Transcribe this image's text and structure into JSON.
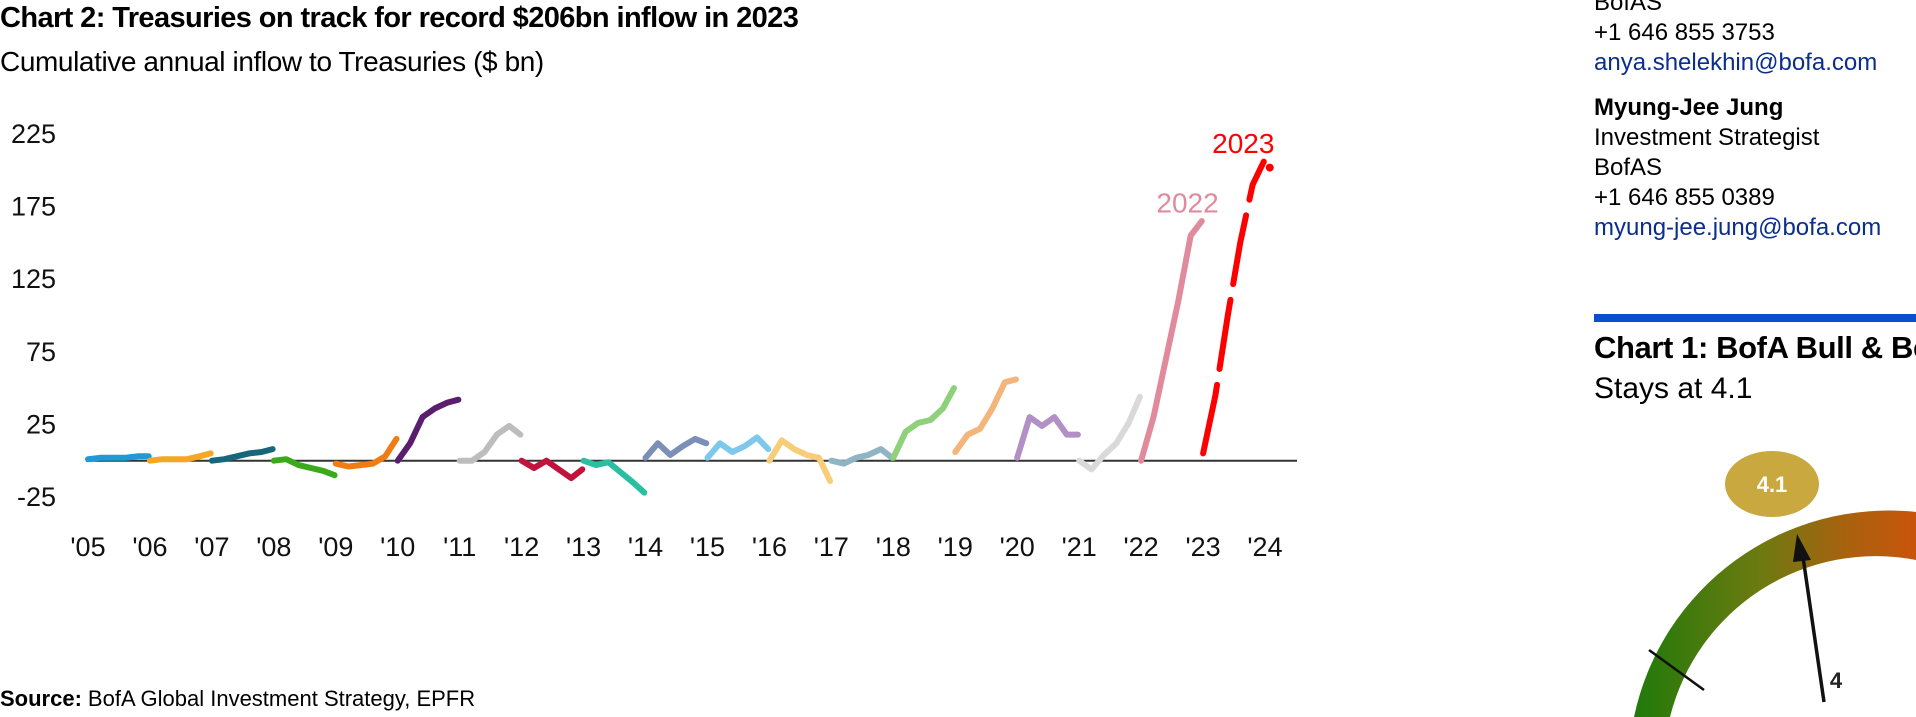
{
  "chart_data": {
    "type": "line",
    "title": "Chart 2: Treasuries on track for record $206bn inflow in 2023",
    "subtitle": "Cumulative annual inflow to Treasuries ($ bn)",
    "xlabel": "",
    "ylabel": "",
    "x_ticks": [
      "'05",
      "'06",
      "'07",
      "'08",
      "'09",
      "'10",
      "'11",
      "'12",
      "'13",
      "'14",
      "'15",
      "'16",
      "'17",
      "'18",
      "'19",
      "'20",
      "'21",
      "'22",
      "'23",
      "'24"
    ],
    "y_ticks": [
      225,
      175,
      125,
      75,
      25,
      -25
    ],
    "ylim": [
      -25,
      225
    ],
    "xlim": [
      2005,
      2024
    ],
    "grid": false,
    "zero_line": true,
    "legend": "none",
    "source_label": "Source:",
    "source_text": "BofA Global Investment Strategy, EPFR",
    "annotations": [
      {
        "text": "2023",
        "x": 2023.65,
        "y": 212,
        "color": "#ff0000"
      },
      {
        "text": "2022",
        "x": 2022.75,
        "y": 171,
        "color": "#e08a9c"
      }
    ],
    "series": [
      {
        "year": 2005,
        "color": "#1f9ad6",
        "points": [
          [
            2005.0,
            1
          ],
          [
            2005.2,
            2
          ],
          [
            2005.4,
            2
          ],
          [
            2005.6,
            2
          ],
          [
            2005.8,
            3
          ],
          [
            2005.98,
            3
          ]
        ]
      },
      {
        "year": 2006,
        "color": "#f5a623",
        "points": [
          [
            2006.0,
            0
          ],
          [
            2006.2,
            1
          ],
          [
            2006.4,
            1
          ],
          [
            2006.6,
            1
          ],
          [
            2006.8,
            3
          ],
          [
            2006.98,
            5
          ]
        ]
      },
      {
        "year": 2007,
        "color": "#17667a",
        "points": [
          [
            2007.0,
            0
          ],
          [
            2007.2,
            1
          ],
          [
            2007.4,
            3
          ],
          [
            2007.6,
            5
          ],
          [
            2007.8,
            6
          ],
          [
            2007.98,
            8
          ]
        ]
      },
      {
        "year": 2008,
        "color": "#3aaa1c",
        "points": [
          [
            2008.0,
            0
          ],
          [
            2008.2,
            1
          ],
          [
            2008.4,
            -3
          ],
          [
            2008.6,
            -5
          ],
          [
            2008.8,
            -7
          ],
          [
            2008.98,
            -10
          ]
        ]
      },
      {
        "year": 2009,
        "color": "#ef7d14",
        "points": [
          [
            2009.0,
            -2
          ],
          [
            2009.2,
            -4
          ],
          [
            2009.4,
            -3
          ],
          [
            2009.6,
            -2
          ],
          [
            2009.8,
            3
          ],
          [
            2009.98,
            15
          ]
        ]
      },
      {
        "year": 2010,
        "color": "#5b1e6e",
        "points": [
          [
            2010.0,
            0
          ],
          [
            2010.2,
            12
          ],
          [
            2010.4,
            30
          ],
          [
            2010.6,
            36
          ],
          [
            2010.8,
            40
          ],
          [
            2010.98,
            42
          ]
        ]
      },
      {
        "year": 2011,
        "color": "#bdbdbd",
        "points": [
          [
            2011.0,
            0
          ],
          [
            2011.2,
            0
          ],
          [
            2011.4,
            6
          ],
          [
            2011.6,
            18
          ],
          [
            2011.8,
            24
          ],
          [
            2011.98,
            18
          ]
        ]
      },
      {
        "year": 2012,
        "color": "#c0143c",
        "points": [
          [
            2012.0,
            0
          ],
          [
            2012.2,
            -5
          ],
          [
            2012.4,
            0
          ],
          [
            2012.6,
            -6
          ],
          [
            2012.8,
            -12
          ],
          [
            2012.98,
            -6
          ]
        ]
      },
      {
        "year": 2013,
        "color": "#2abfa0",
        "points": [
          [
            2013.0,
            0
          ],
          [
            2013.2,
            -3
          ],
          [
            2013.4,
            -1
          ],
          [
            2013.6,
            -8
          ],
          [
            2013.8,
            -15
          ],
          [
            2013.98,
            -22
          ]
        ]
      },
      {
        "year": 2014,
        "color": "#7b8fb8",
        "points": [
          [
            2014.0,
            2
          ],
          [
            2014.2,
            12
          ],
          [
            2014.4,
            4
          ],
          [
            2014.6,
            10
          ],
          [
            2014.8,
            15
          ],
          [
            2014.98,
            12
          ]
        ]
      },
      {
        "year": 2015,
        "color": "#7ec8ec",
        "points": [
          [
            2015.0,
            2
          ],
          [
            2015.2,
            12
          ],
          [
            2015.4,
            6
          ],
          [
            2015.6,
            10
          ],
          [
            2015.8,
            16
          ],
          [
            2015.98,
            8
          ]
        ]
      },
      {
        "year": 2016,
        "color": "#f7cd7a",
        "points": [
          [
            2016.0,
            0
          ],
          [
            2016.2,
            14
          ],
          [
            2016.4,
            8
          ],
          [
            2016.6,
            4
          ],
          [
            2016.8,
            2
          ],
          [
            2016.98,
            -14
          ]
        ]
      },
      {
        "year": 2017,
        "color": "#8fb4c4",
        "points": [
          [
            2017.0,
            0
          ],
          [
            2017.2,
            -2
          ],
          [
            2017.4,
            2
          ],
          [
            2017.6,
            4
          ],
          [
            2017.8,
            8
          ],
          [
            2017.98,
            2
          ]
        ]
      },
      {
        "year": 2018,
        "color": "#8fd07a",
        "points": [
          [
            2018.0,
            2
          ],
          [
            2018.2,
            20
          ],
          [
            2018.4,
            26
          ],
          [
            2018.6,
            28
          ],
          [
            2018.8,
            36
          ],
          [
            2018.98,
            50
          ]
        ]
      },
      {
        "year": 2019,
        "color": "#f3b57a",
        "points": [
          [
            2019.0,
            6
          ],
          [
            2019.2,
            18
          ],
          [
            2019.4,
            22
          ],
          [
            2019.6,
            36
          ],
          [
            2019.8,
            54
          ],
          [
            2019.98,
            56
          ]
        ]
      },
      {
        "year": 2020,
        "color": "#b290c6",
        "points": [
          [
            2020.0,
            2
          ],
          [
            2020.2,
            30
          ],
          [
            2020.4,
            24
          ],
          [
            2020.6,
            30
          ],
          [
            2020.8,
            18
          ],
          [
            2020.98,
            18
          ]
        ]
      },
      {
        "year": 2021,
        "color": "#d9d9d9",
        "points": [
          [
            2021.0,
            0
          ],
          [
            2021.2,
            -6
          ],
          [
            2021.4,
            4
          ],
          [
            2021.6,
            12
          ],
          [
            2021.8,
            26
          ],
          [
            2021.98,
            44
          ]
        ]
      },
      {
        "year": 2022,
        "color": "#e08a9c",
        "points": [
          [
            2022.0,
            0
          ],
          [
            2022.2,
            30
          ],
          [
            2022.4,
            70
          ],
          [
            2022.6,
            110
          ],
          [
            2022.8,
            155
          ],
          [
            2022.98,
            165
          ]
        ]
      },
      {
        "year": 2023,
        "color": "#ff0000",
        "points": [
          [
            2023.0,
            5
          ],
          [
            2023.2,
            45
          ],
          [
            2023.4,
            100
          ],
          [
            2023.6,
            150
          ],
          [
            2023.8,
            190
          ],
          [
            2023.98,
            206
          ]
        ]
      }
    ]
  },
  "contacts": [
    {
      "org": "BofAS",
      "phone": "+1 646 855 3753",
      "email": "anya.shelekhin@bofa.com"
    },
    {
      "name": "Myung-Jee  Jung",
      "role": "Investment  Strategist",
      "org": "BofAS",
      "phone": "+1 646 855 0389",
      "email": "myung-jee.jung@bofa.com"
    }
  ],
  "side_chart": {
    "title": "Chart 1: BofA Bull & Be",
    "subtitle": "Stays at 4.1",
    "gauge_value": 4.1,
    "gauge_value_label": "4.1",
    "gauge_tick_label": "4"
  },
  "colors": {
    "accent_blue": "#0a4fd1",
    "link_blue": "#0b2e8c",
    "gauge_badge": "#c9a93f"
  }
}
